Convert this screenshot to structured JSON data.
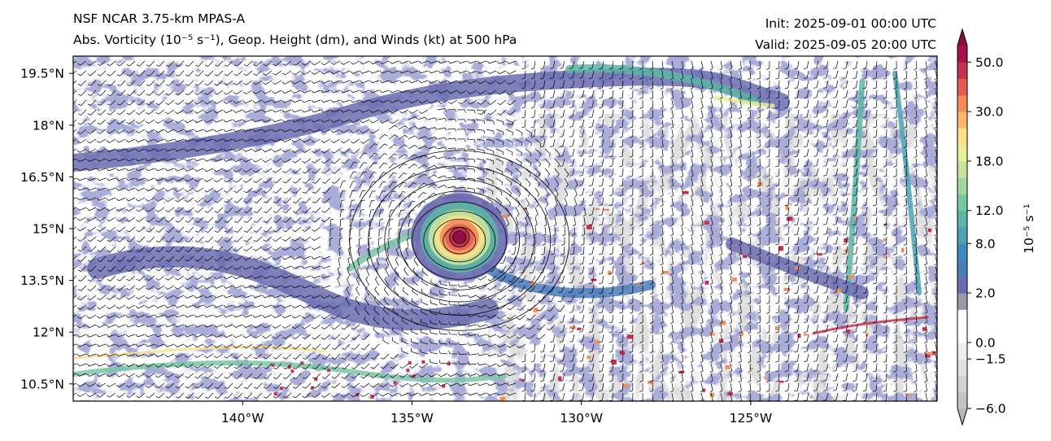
{
  "header": {
    "model_title": "NSF NCAR 3.75-km MPAS-A",
    "field_title": "Abs. Vorticity (10⁻⁵ s⁻¹), Geop. Height (dm), and Winds (kt) at 500 hPa",
    "init_time": "Init: 2025-09-01 00:00 UTC",
    "valid_time": "Valid: 2025-09-05 20:00 UTC"
  },
  "map": {
    "lon_range": [
      -145.0,
      -119.5
    ],
    "lat_range": [
      10.0,
      20.0
    ],
    "lon_ticks": [
      {
        "value": -140,
        "label": "140°W"
      },
      {
        "value": -135,
        "label": "135°W"
      },
      {
        "value": -130,
        "label": "130°W"
      },
      {
        "value": -125,
        "label": "125°W"
      }
    ],
    "lat_ticks": [
      {
        "value": 19.5,
        "label": "19.5°N"
      },
      {
        "value": 18.0,
        "label": "18°N"
      },
      {
        "value": 16.5,
        "label": "16.5°N"
      },
      {
        "value": 15.0,
        "label": "15°N"
      },
      {
        "value": 13.5,
        "label": "13.5°N"
      },
      {
        "value": 12.0,
        "label": "12°N"
      },
      {
        "value": 10.5,
        "label": "10.5°N"
      }
    ],
    "cyclone_center": {
      "lon": -133.6,
      "lat": 14.75
    }
  },
  "colorbar": {
    "label": "10⁻⁵ s⁻¹",
    "extend": "both",
    "levels": [
      -6.0,
      -4.5,
      -3.0,
      -1.5,
      0.0,
      0.5,
      1.0,
      2.0,
      4.0,
      6.0,
      8.0,
      10.0,
      12.0,
      14.0,
      16.0,
      18.0,
      21.0,
      25.0,
      30.0,
      35.0,
      40.0,
      50.0,
      60.0
    ],
    "tick_labels": [
      "-6.0",
      "−1.5",
      "0.0",
      "2.0",
      "8.0",
      "12.0",
      "18.0",
      "30.0",
      "50.0"
    ],
    "tick_values": [
      -6.0,
      -1.5,
      0.0,
      2.0,
      8.0,
      12.0,
      18.0,
      30.0,
      50.0
    ],
    "tick_text": [
      "−6.0",
      "−1.5",
      "0.0",
      "2.0",
      "8.0",
      "12.0",
      "18.0",
      "30.0",
      "50.0"
    ],
    "colors": [
      "#c4c4c4",
      "#d2d2d2",
      "#e0e0e0",
      "#eeeeee",
      "#ffffff",
      "#ffffff",
      "#9a9aa6",
      "#6a6cb0",
      "#4a7bbb",
      "#3a8cc0",
      "#4aa2b2",
      "#5cb5a6",
      "#7ac5a4",
      "#a2d6a0",
      "#c6e49c",
      "#e8ee9c",
      "#fce08a",
      "#fcb86c",
      "#f48c5a",
      "#e45c50",
      "#c83050",
      "#a4104a"
    ],
    "under_color": "#b8b8b8",
    "over_color": "#8e0a44"
  }
}
